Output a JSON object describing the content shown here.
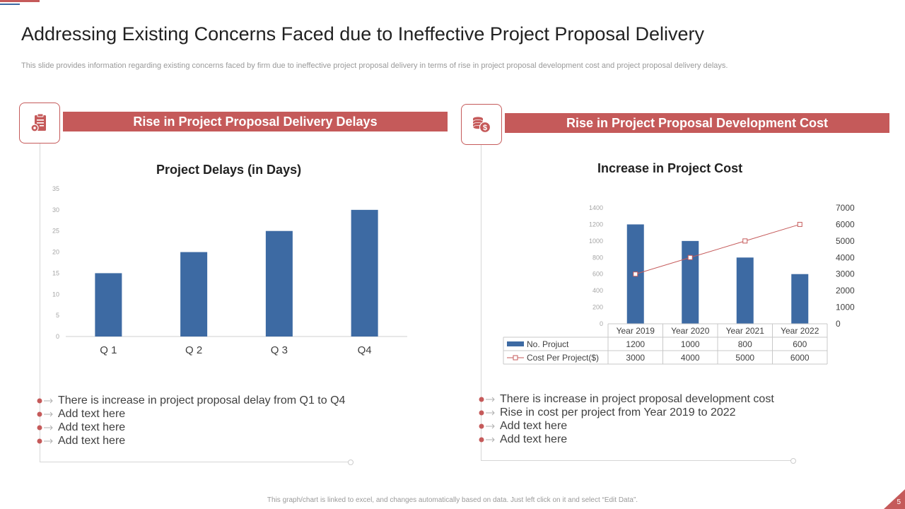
{
  "page": {
    "title": "Addressing Existing Concerns Faced due to Ineffective Project  Proposal Delivery",
    "subtitle": "This slide provides information regarding existing concerns faced by firm due to ineffective project proposal delivery in terms of rise in project proposal  development cost and project proposal delivery delays.",
    "footnote": "This graph/chart is linked to excel, and changes automatically based on data. Just left click on it and select “Edit Data”.",
    "page_number": "5"
  },
  "colors": {
    "accent_red": "#c55a5a",
    "bar_blue": "#3d6aa3"
  },
  "left": {
    "icon": "clipboard-gear-icon",
    "banner": "Rise in Project Proposal Delivery Delays",
    "bullets": [
      "There is increase in project proposal delay from Q1 to Q4",
      "Add text here",
      "Add text here",
      "Add text here"
    ]
  },
  "right": {
    "icon": "coins-dollar-icon",
    "banner": "Rise in Project Proposal Development Cost",
    "bullets": [
      "There is increase in project proposal development  cost",
      "Rise in cost per project from Year 2019 to 2022",
      "Add text here",
      "Add text here"
    ]
  },
  "chart_data": [
    {
      "type": "bar",
      "title": "Project Delays (in Days)",
      "categories": [
        "Q 1",
        "Q 2",
        "Q 3",
        "Q4"
      ],
      "values": [
        15,
        20,
        25,
        30
      ],
      "ylim": [
        0,
        35
      ],
      "yticks": [
        "0",
        "5",
        "10",
        "15",
        "20",
        "25",
        "30",
        "35"
      ],
      "xlabel": "",
      "ylabel": ""
    },
    {
      "type": "bar+line",
      "title": "Increase in Project Cost",
      "categories": [
        "Year 2019",
        "Year 2020",
        "Year 2021",
        "Year 2022"
      ],
      "series": [
        {
          "name": "No. Projuct",
          "type": "bar",
          "axis": "left",
          "values": [
            1200,
            1000,
            800,
            600
          ],
          "labels": [
            "1200",
            "1000",
            "800",
            "600"
          ]
        },
        {
          "name": "Cost Per Project($)",
          "type": "line",
          "axis": "right",
          "values": [
            3000,
            4000,
            5000,
            6000
          ],
          "labels": [
            "3000",
            "4000",
            "5000",
            "6000"
          ]
        }
      ],
      "ylim_left": [
        0,
        1400
      ],
      "yticks_left": [
        "0",
        "200",
        "400",
        "600",
        "800",
        "1000",
        "1200",
        "1400"
      ],
      "ylim_right": [
        0,
        7000
      ],
      "yticks_right": [
        "0",
        "1000",
        "2000",
        "3000",
        "4000",
        "5000",
        "6000",
        "7000"
      ],
      "data_table": true
    }
  ]
}
